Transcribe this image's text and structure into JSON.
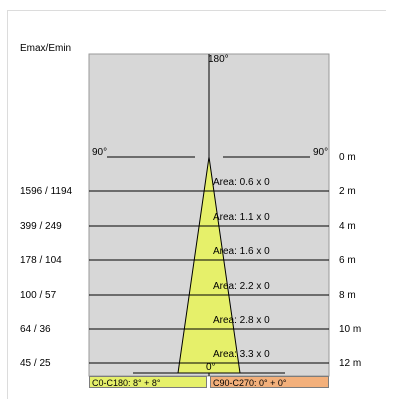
{
  "header": {
    "title": "Emax/Emin"
  },
  "angles": {
    "top": "180°",
    "left": "90°",
    "right": "90°",
    "bottom": "0°"
  },
  "rows": [
    {
      "distance": "0 m",
      "ratio": "",
      "area": ""
    },
    {
      "distance": "2 m",
      "ratio": "1596 / 1194",
      "area": "Area: 0.6  x  0"
    },
    {
      "distance": "4 m",
      "ratio": "399 / 249",
      "area": "Area: 1.1  x  0"
    },
    {
      "distance": "6 m",
      "ratio": "178 / 104",
      "area": "Area: 1.6  x  0"
    },
    {
      "distance": "8 m",
      "ratio": "100 / 57",
      "area": "Area: 2.2  x  0"
    },
    {
      "distance": "10 m",
      "ratio": "64 / 36",
      "area": "Area: 2.8  x  0"
    },
    {
      "distance": "12 m",
      "ratio": "45 / 25",
      "area": "Area: 3.3  x  0"
    }
  ],
  "legend": {
    "c0_label": "C0-C180: 8° + 8°",
    "c90_label": "C90-C270: 0° + 0°",
    "c0_color": "#e6f06a",
    "c90_color": "#f3b07b"
  },
  "colors": {
    "plot_background": "#d7d7d7",
    "beam_fill": "#e6f06a",
    "line": "#000000",
    "frame": "#dcdcdc"
  }
}
